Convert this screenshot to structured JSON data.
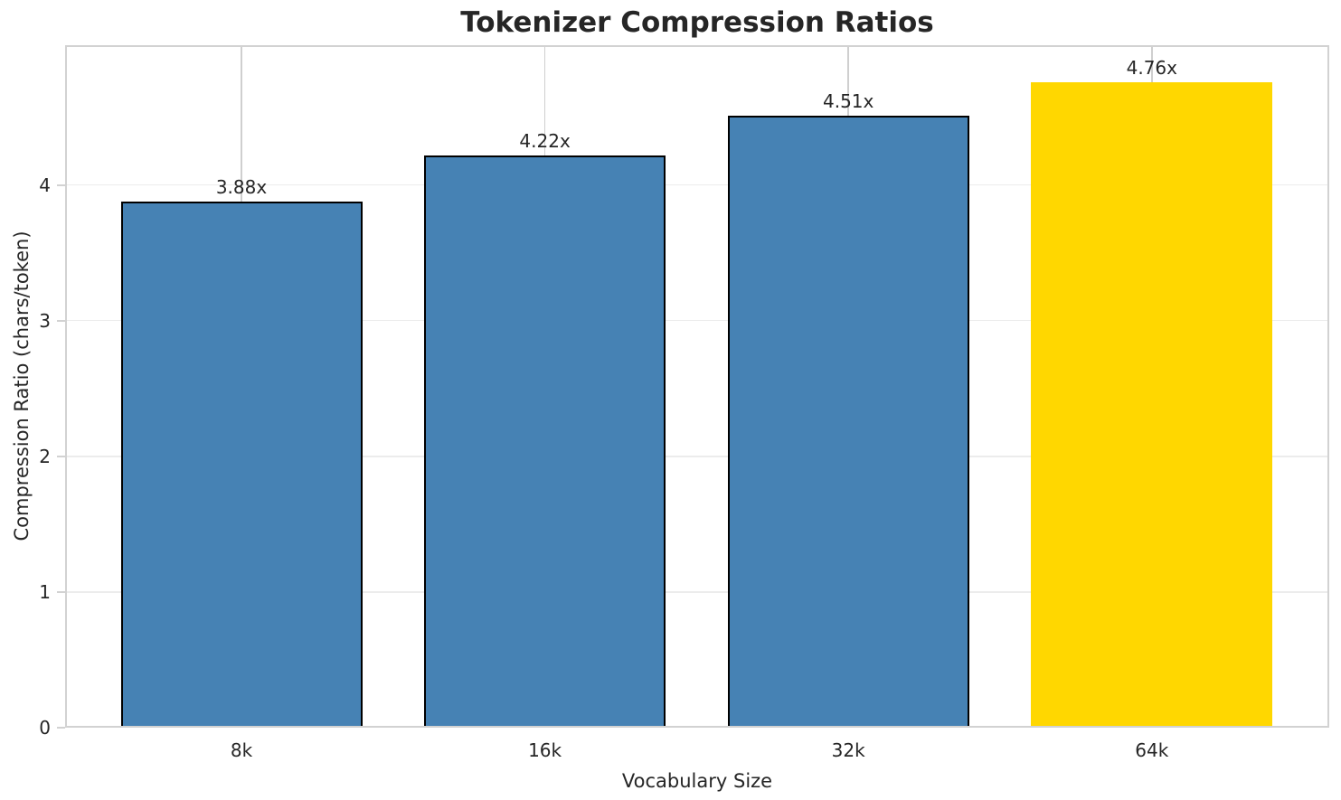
{
  "chart_data": {
    "type": "bar",
    "title": "Tokenizer Compression Ratios",
    "xlabel": "Vocabulary Size",
    "ylabel": "Compression Ratio (chars/token)",
    "categories": [
      "8k",
      "16k",
      "32k",
      "64k"
    ],
    "values": [
      3.88,
      4.22,
      4.51,
      4.76
    ],
    "bar_labels": [
      "3.88x",
      "4.22x",
      "4.51x",
      "4.76x"
    ],
    "yticks": [
      0,
      1,
      2,
      3,
      4
    ],
    "ylim": [
      0,
      5.03
    ],
    "grid": true,
    "legend": "none",
    "highlight_index": 3,
    "bar_colors": [
      "#4682B4",
      "#4682B4",
      "#4682B4",
      "#FFD700"
    ],
    "bar_edge_colors": [
      "#000000",
      "#000000",
      "#000000",
      "none"
    ]
  },
  "colors": {
    "background": "#ffffff",
    "text": "#262626",
    "spine": "#d2d2d2",
    "grid_horizontal": "#ececec",
    "grid_vertical": "#cfcfcf",
    "bar_blue": "#4682B4",
    "bar_gold": "#FFD700",
    "bar_edge": "#000000"
  }
}
